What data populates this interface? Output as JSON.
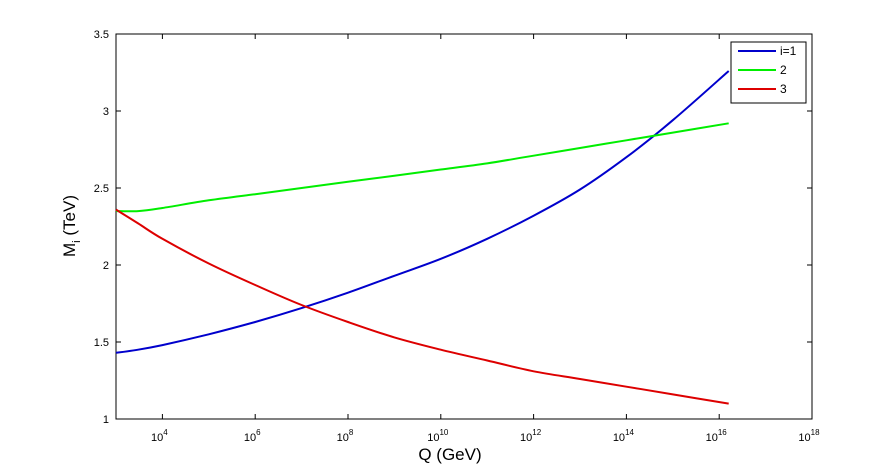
{
  "chart_data": {
    "type": "line",
    "xscale": "log",
    "xlabel": "Q (GeV)",
    "ylabel_main": "M",
    "ylabel_sub": "i",
    "ylabel_rest": " (TeV)",
    "xlim": [
      1000,
      1e+18
    ],
    "ylim": [
      1,
      3.5
    ],
    "x_ticks": [
      {
        "value": 10000.0,
        "base": "10",
        "exp": "4"
      },
      {
        "value": 1000000.0,
        "base": "10",
        "exp": "6"
      },
      {
        "value": 100000000.0,
        "base": "10",
        "exp": "8"
      },
      {
        "value": 10000000000.0,
        "base": "10",
        "exp": "10"
      },
      {
        "value": 1000000000000.0,
        "base": "10",
        "exp": "12"
      },
      {
        "value": 100000000000000.0,
        "base": "10",
        "exp": "14"
      },
      {
        "value": 1e+16,
        "base": "10",
        "exp": "16"
      },
      {
        "value": 1e+18,
        "base": "10",
        "exp": "18"
      }
    ],
    "y_ticks": [
      "1",
      "1.5",
      "2",
      "2.5",
      "3",
      "3.5"
    ],
    "grid": false,
    "legend_position": "top-right",
    "x": [
      1000,
      3000,
      10000.0,
      100000.0,
      1000000.0,
      10000000.0,
      100000000.0,
      1000000000.0,
      10000000000.0,
      100000000000.0,
      1000000000000.0,
      10000000000000.0,
      100000000000000.0,
      1000000000000000.0,
      1.6e+16
    ],
    "series": [
      {
        "name": "i=1",
        "color": "#0000cc",
        "values": [
          1.43,
          1.45,
          1.48,
          1.55,
          1.63,
          1.72,
          1.82,
          1.93,
          2.04,
          2.17,
          2.32,
          2.49,
          2.7,
          2.94,
          3.26
        ]
      },
      {
        "name": "2",
        "color": "#00ee00",
        "values": [
          2.35,
          2.35,
          2.37,
          2.42,
          2.46,
          2.5,
          2.54,
          2.58,
          2.62,
          2.66,
          2.71,
          2.76,
          2.81,
          2.86,
          2.92
        ]
      },
      {
        "name": "3",
        "color": "#dd0000",
        "values": [
          2.36,
          2.27,
          2.17,
          2.01,
          1.87,
          1.74,
          1.63,
          1.53,
          1.45,
          1.38,
          1.31,
          1.26,
          1.21,
          1.16,
          1.1
        ]
      }
    ]
  }
}
